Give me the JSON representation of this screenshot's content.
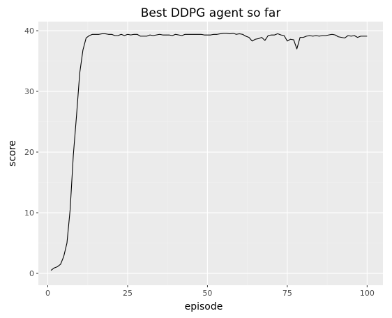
{
  "chart_data": {
    "type": "line",
    "title": "Best DDPG agent so far",
    "xlabel": "episode",
    "ylabel": "score",
    "xlim": [
      -2.95,
      104.95
    ],
    "ylim": [
      -1.95,
      41.5
    ],
    "xticks": [
      0,
      25,
      50,
      75,
      100
    ],
    "yticks": [
      0,
      10,
      20,
      30,
      40
    ],
    "grid": true,
    "legend": "none",
    "colors": {
      "panel": "#ebebeb",
      "grid_major": "#ffffff",
      "grid_minor": "#f2f2f2",
      "line": "#000000",
      "tick": "#333333"
    },
    "series": [
      {
        "x": [
          1,
          2,
          3,
          4,
          5,
          6,
          7,
          8,
          9,
          10,
          11,
          12,
          13,
          14,
          15,
          16,
          17,
          18,
          19,
          20,
          21,
          22,
          23,
          24,
          25,
          26,
          27,
          28,
          29,
          30,
          31,
          32,
          33,
          34,
          35,
          36,
          37,
          38,
          39,
          40,
          41,
          42,
          43,
          44,
          45,
          46,
          47,
          48,
          49,
          50,
          51,
          52,
          53,
          54,
          55,
          56,
          57,
          58,
          59,
          60,
          61,
          62,
          63,
          64,
          65,
          66,
          67,
          68,
          69,
          70,
          71,
          72,
          73,
          74,
          75,
          76,
          77,
          78,
          79,
          80,
          81,
          82,
          83,
          84,
          85,
          86,
          87,
          88,
          89,
          90,
          91,
          92,
          93,
          94,
          95,
          96,
          97,
          98,
          99,
          100
        ],
        "values": [
          0.5,
          0.9,
          1.1,
          1.5,
          2.8,
          5.0,
          10.5,
          19.5,
          26.0,
          33.0,
          36.8,
          38.8,
          39.2,
          39.4,
          39.4,
          39.4,
          39.5,
          39.5,
          39.4,
          39.4,
          39.2,
          39.2,
          39.4,
          39.2,
          39.4,
          39.3,
          39.4,
          39.4,
          39.1,
          39.1,
          39.1,
          39.3,
          39.2,
          39.3,
          39.4,
          39.3,
          39.3,
          39.3,
          39.2,
          39.4,
          39.3,
          39.2,
          39.4,
          39.4,
          39.4,
          39.4,
          39.4,
          39.4,
          39.3,
          39.3,
          39.3,
          39.4,
          39.4,
          39.5,
          39.6,
          39.6,
          39.5,
          39.6,
          39.4,
          39.5,
          39.4,
          39.1,
          38.9,
          38.3,
          38.6,
          38.7,
          38.9,
          38.4,
          39.2,
          39.3,
          39.3,
          39.5,
          39.3,
          39.2,
          38.3,
          38.6,
          38.5,
          37.0,
          38.9,
          38.9,
          39.1,
          39.2,
          39.1,
          39.2,
          39.1,
          39.2,
          39.2,
          39.3,
          39.4,
          39.3,
          39.0,
          38.9,
          38.8,
          39.2,
          39.1,
          39.2,
          38.9,
          39.1,
          39.1,
          39.1
        ]
      }
    ]
  }
}
